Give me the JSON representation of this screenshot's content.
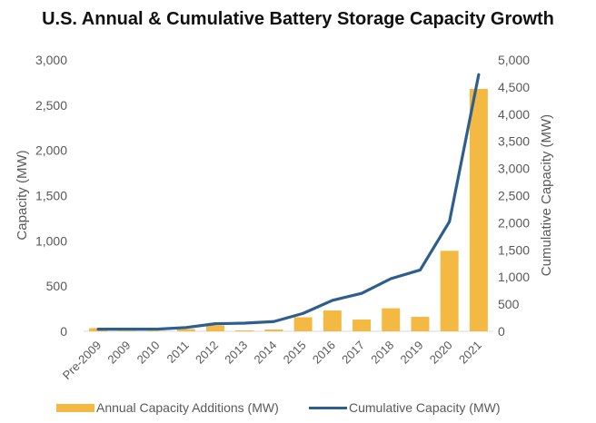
{
  "chart_data": {
    "type": "bar",
    "title": "U.S. Annual & Cumulative Battery Storage Capacity Growth",
    "xlabel": "",
    "ylabel": "Capacity (MW)",
    "y2label": "Cumulative Capacity (MW)",
    "categories": [
      "Pre-2009",
      "2009",
      "2010",
      "2011",
      "2012",
      "2013",
      "2014",
      "2015",
      "2016",
      "2017",
      "2018",
      "2019",
      "2020",
      "2021"
    ],
    "ylim": [
      0,
      3000
    ],
    "y2lim": [
      0,
      5000
    ],
    "yticks": [
      0,
      500,
      1000,
      1500,
      2000,
      2500,
      3000
    ],
    "y2ticks": [
      0,
      500,
      1000,
      1500,
      2000,
      2500,
      3000,
      3500,
      4000,
      4500,
      5000
    ],
    "ytick_labels": [
      "0",
      "500",
      "1,000",
      "1,500",
      "2,000",
      "2,500",
      "3,000"
    ],
    "y2tick_labels": [
      "0",
      "500",
      "1,000",
      "1,500",
      "2,000",
      "2,500",
      "3,000",
      "3,500",
      "4,000",
      "4,500",
      "5,000"
    ],
    "grid": false,
    "legend": "bottom",
    "series": [
      {
        "name": "Annual Capacity Additions (MW)",
        "type": "bar",
        "axis": "left",
        "color": "#F4B942",
        "values": [
          35,
          5,
          5,
          25,
          65,
          10,
          20,
          155,
          230,
          130,
          255,
          160,
          890,
          2680
        ]
      },
      {
        "name": "Cumulative Capacity (MW)",
        "type": "line",
        "axis": "right",
        "color": "#2E5E8E",
        "values": [
          40,
          40,
          40,
          70,
          140,
          150,
          180,
          330,
          570,
          700,
          970,
          1130,
          2020,
          4730
        ]
      }
    ]
  }
}
